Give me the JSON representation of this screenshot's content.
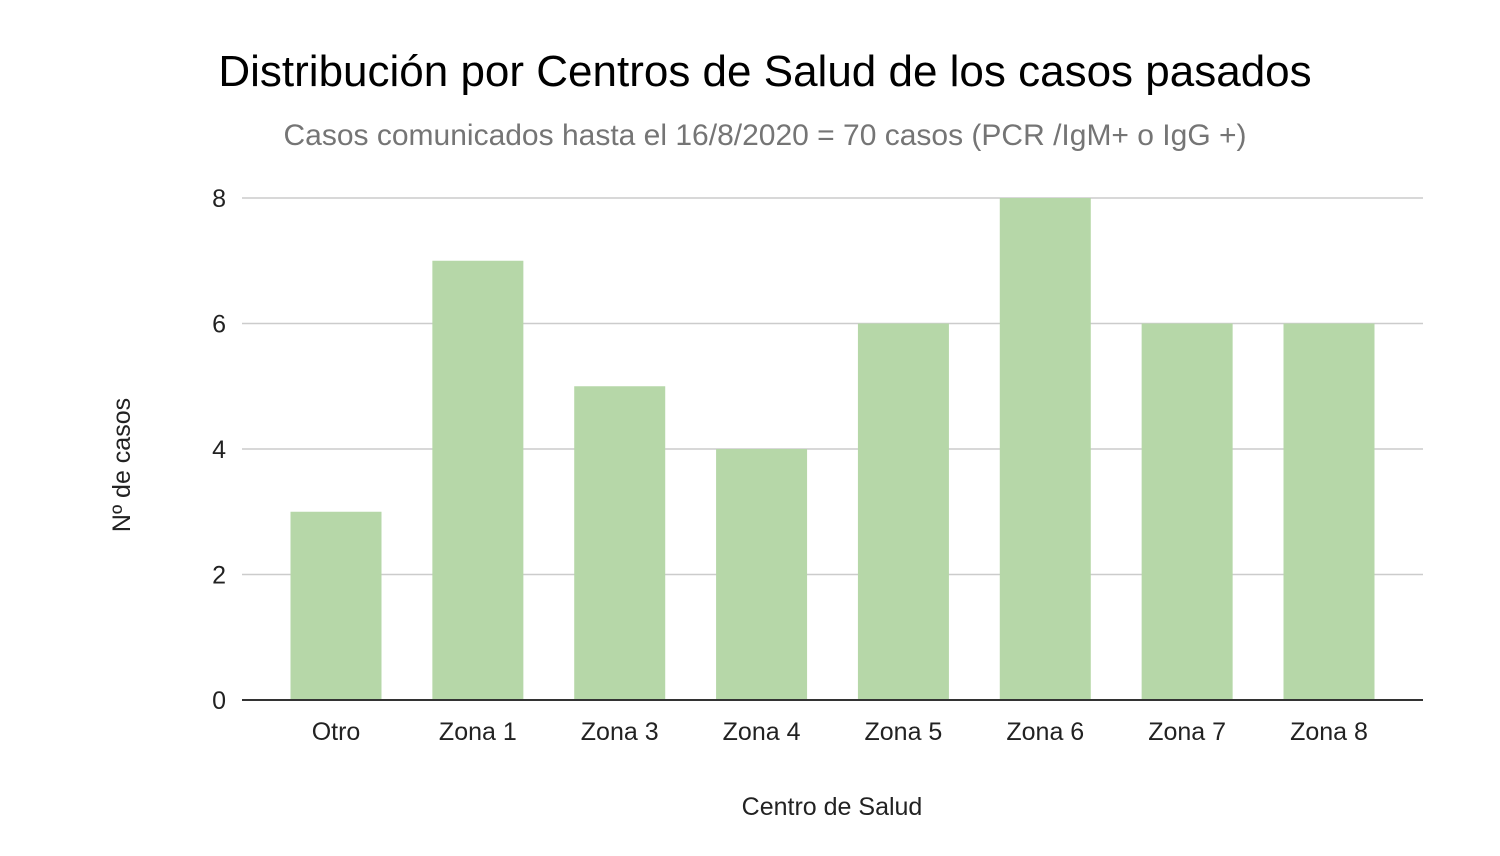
{
  "chart_data": {
    "type": "bar",
    "title": "Distribución por Centros de Salud de los casos pasados",
    "subtitle": "Casos comunicados hasta el 16/8/2020 = 70 casos (PCR /IgM+ o IgG +)",
    "xlabel": "Centro de Salud",
    "ylabel": "Nº de casos",
    "categories": [
      "Otro",
      "Zona 1",
      "Zona 3",
      "Zona 4",
      "Zona 5",
      "Zona 6",
      "Zona 7",
      "Zona 8"
    ],
    "values": [
      3,
      7,
      5,
      4,
      6,
      8,
      6,
      6
    ],
    "ylim": [
      0,
      8
    ],
    "yticks": [
      0,
      2,
      4,
      6,
      8
    ],
    "grid": true,
    "legend": "none",
    "bar_color": "#b6d7a8"
  }
}
